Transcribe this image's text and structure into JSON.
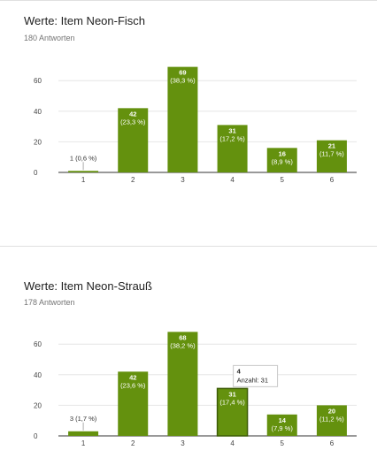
{
  "chart_data": [
    {
      "type": "bar",
      "title": "Werte: Item Neon-Fisch",
      "subtitle": "180 Antworten",
      "categories": [
        "1",
        "2",
        "3",
        "4",
        "5",
        "6"
      ],
      "values": [
        1,
        42,
        69,
        31,
        16,
        21
      ],
      "bar_labels": [
        [
          "1 (0,6 %)"
        ],
        [
          "42",
          "(23,3 %)"
        ],
        [
          "69",
          "(38,3 %)"
        ],
        [
          "31",
          "(17,2 %)"
        ],
        [
          "16",
          "(8,9 %)"
        ],
        [
          "21",
          "(11,7 %)"
        ]
      ],
      "yticks": [
        0,
        20,
        40,
        60
      ],
      "ylim": [
        0,
        75
      ],
      "grid": true,
      "bar_color": "#64910e",
      "tooltip": null
    },
    {
      "type": "bar",
      "title": "Werte: Item Neon-Strauß",
      "subtitle": "178 Antworten",
      "categories": [
        "1",
        "2",
        "3",
        "4",
        "5",
        "6"
      ],
      "values": [
        3,
        42,
        68,
        31,
        14,
        20
      ],
      "bar_labels": [
        [
          "3 (1,7 %)"
        ],
        [
          "42",
          "(23,6 %)"
        ],
        [
          "68",
          "(38,2 %)"
        ],
        [
          "31",
          "(17,4 %)"
        ],
        [
          "14",
          "(7,9 %)"
        ],
        [
          "20",
          "(11,2 %)"
        ]
      ],
      "yticks": [
        0,
        20,
        40,
        60
      ],
      "ylim": [
        0,
        75
      ],
      "grid": true,
      "bar_color": "#64910e",
      "tooltip": {
        "category_index": 3,
        "title": "4",
        "body": "Anzahl: 31"
      }
    }
  ]
}
